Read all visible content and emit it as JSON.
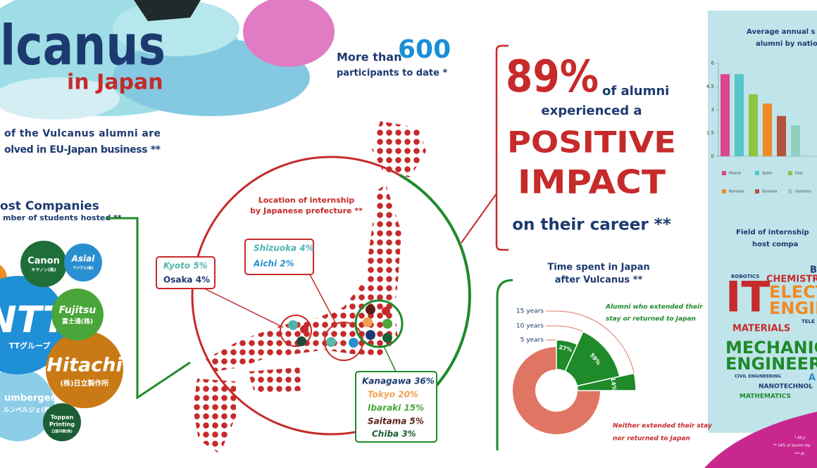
{
  "header": {
    "title": "lcanus",
    "subtitle": "in Japan"
  },
  "intro": {
    "lines": [
      "of the Vulcanus alumni are",
      "olved in EU-Japan business **"
    ]
  },
  "participants": {
    "prefix": "More than",
    "number": "600",
    "suffix": "participants to date *"
  },
  "host_companies": {
    "title": "ost Companies",
    "subtitle": "mber of students hosted **",
    "companies": [
      {
        "name": "Canon",
        "sub": "キヤノン(株)"
      },
      {
        "name": "Asial",
        "sub": "アジアル(株)"
      },
      {
        "name": "NTT",
        "sub": "TTグループ"
      },
      {
        "name": "Fujitsu",
        "sub": "富士通(株)"
      },
      {
        "name": "Hitachi",
        "sub": "(株)日立製作所"
      },
      {
        "name": "umberger",
        "sub": "ルンベルジェ(株)"
      },
      {
        "name": "Toppan",
        "name2": "Printing",
        "sub": "凸版印刷(株)"
      }
    ]
  },
  "map": {
    "title": [
      "Location of internship",
      "by Japanese prefecture **"
    ],
    "west": [
      "Kyoto 5%",
      "Osaka 4%"
    ],
    "central": [
      "Shizuoka 4%",
      "Aichi 2%"
    ],
    "east": [
      "Kanagawa 36%",
      "Tokyo 20%",
      "Ibaraki 15%",
      "Saitama 5%",
      "Chiba 3%"
    ]
  },
  "impact": {
    "percent": "89%",
    "lines": [
      "of alumni",
      "experienced a"
    ],
    "big": [
      "POSITIVE",
      "IMPACT"
    ],
    "end": "on their career **"
  },
  "chart_data": [
    {
      "type": "bar",
      "title": "Average annual s",
      "subtitle": "alumni by natio",
      "categories": [
        "Poland",
        "Spain",
        "Italy",
        "Romania",
        "Slovenia",
        "Germany"
      ],
      "values": [
        5.3,
        5.3,
        4,
        3.4,
        2.6,
        2
      ],
      "colors": [
        "#d9468f",
        "#56c4c9",
        "#8cc63f",
        "#f08a24",
        "#b5533c",
        "#8fcfc0"
      ],
      "ylim": [
        0,
        6
      ],
      "yticks": [
        0,
        1.5,
        3,
        4.5,
        6
      ]
    },
    {
      "type": "pie",
      "title": "Time spent in Japan",
      "subtitle": "after Vulcanus **",
      "categories": [
        "5 years",
        "10 years",
        "15 years"
      ],
      "values": [
        27,
        59,
        14
      ],
      "value_labels": [
        "27%",
        "59%",
        "14%"
      ],
      "color": "#1e8a2a",
      "annotations": [
        "Alumni who extended their",
        "stay or returned to Japan",
        "Neither extended their stay",
        "nor returned to Japan"
      ]
    }
  ],
  "field": {
    "title": [
      "Field of internship",
      "host compa"
    ],
    "words": [
      "BI",
      "ROBOTICS",
      "CHEMISTR",
      "IT",
      "ELECT",
      "ENGIN",
      "TELE",
      "MATERIALS",
      "MECHANIC",
      "ENGINEER",
      "CIVIL ENGINEERING",
      "A",
      "NANOTECHNOL",
      "MATHEMATICS"
    ]
  },
  "notes": [
    "* All p",
    "** 34% of alumni rep",
    "*** Al"
  ]
}
